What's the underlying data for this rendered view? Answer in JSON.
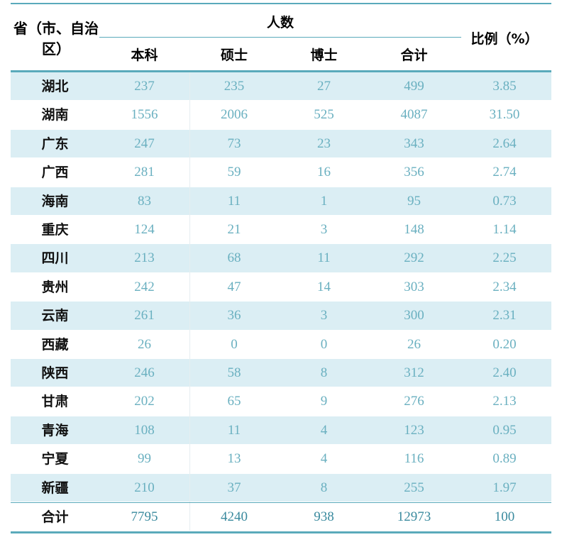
{
  "header": {
    "region": "省（市、自治区）",
    "count_group": "人数",
    "columns": [
      "本科",
      "硕士",
      "博士",
      "合计"
    ],
    "ratio": "比例（%）"
  },
  "rows": [
    [
      "湖北",
      "237",
      "235",
      "27",
      "499",
      "3.85"
    ],
    [
      "湖南",
      "1556",
      "2006",
      "525",
      "4087",
      "31.50"
    ],
    [
      "广东",
      "247",
      "73",
      "23",
      "343",
      "2.64"
    ],
    [
      "广西",
      "281",
      "59",
      "16",
      "356",
      "2.74"
    ],
    [
      "海南",
      "83",
      "11",
      "1",
      "95",
      "0.73"
    ],
    [
      "重庆",
      "124",
      "21",
      "3",
      "148",
      "1.14"
    ],
    [
      "四川",
      "213",
      "68",
      "11",
      "292",
      "2.25"
    ],
    [
      "贵州",
      "242",
      "47",
      "14",
      "303",
      "2.34"
    ],
    [
      "云南",
      "261",
      "36",
      "3",
      "300",
      "2.31"
    ],
    [
      "西藏",
      "26",
      "0",
      "0",
      "26",
      "0.20"
    ],
    [
      "陕西",
      "246",
      "58",
      "8",
      "312",
      "2.40"
    ],
    [
      "甘肃",
      "202",
      "65",
      "9",
      "276",
      "2.13"
    ],
    [
      "青海",
      "108",
      "11",
      "4",
      "123",
      "0.95"
    ],
    [
      "宁夏",
      "99",
      "13",
      "4",
      "116",
      "0.89"
    ],
    [
      "新疆",
      "210",
      "37",
      "8",
      "255",
      "1.97"
    ]
  ],
  "total": [
    "合计",
    "7795",
    "4240",
    "938",
    "12973",
    "100"
  ]
}
